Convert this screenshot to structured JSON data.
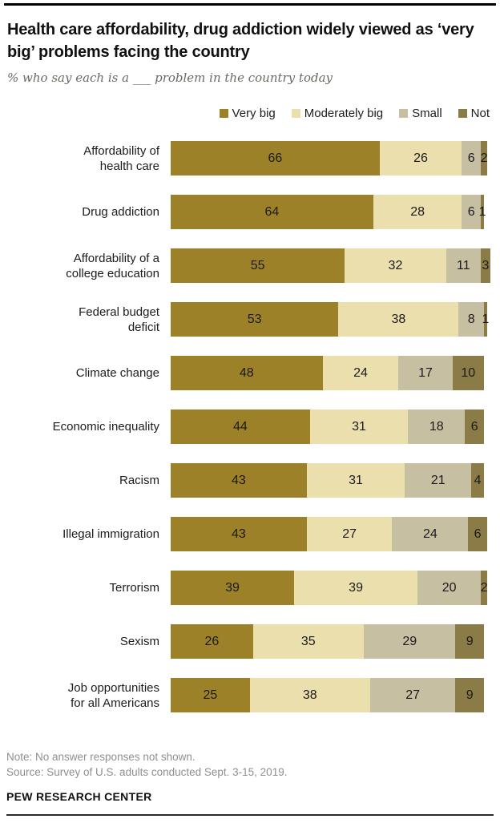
{
  "header": {
    "title": "Health care affordability, drug addiction widely viewed as ‘very big’ problems facing the country",
    "subtitle": "% who say each is a ___ problem in the country today"
  },
  "chart_data": {
    "type": "bar",
    "stacked": true,
    "orientation": "horizontal",
    "unit": "percent",
    "xlim": [
      0,
      100
    ],
    "grid": false,
    "legend_position": "top-right",
    "categories": [
      "Affordability of\nhealth care",
      "Drug addiction",
      "Affordability of a\ncollege education",
      "Federal budget\ndeficit",
      "Climate change",
      "Economic inequality",
      "Racism",
      "Illegal immigration",
      "Terrorism",
      "Sexism",
      "Job opportunities\nfor all Americans"
    ],
    "series": [
      {
        "name": "Very big",
        "color": "#9d8128",
        "values": [
          66,
          64,
          55,
          53,
          48,
          44,
          43,
          43,
          39,
          26,
          25
        ]
      },
      {
        "name": "Moderately big",
        "color": "#ecdfae",
        "values": [
          26,
          28,
          32,
          38,
          24,
          31,
          31,
          27,
          39,
          35,
          38
        ]
      },
      {
        "name": "Small",
        "color": "#c7bfa2",
        "values": [
          6,
          6,
          11,
          8,
          17,
          18,
          21,
          24,
          20,
          29,
          27
        ]
      },
      {
        "name": "Not",
        "color": "#8a7b47",
        "values": [
          2,
          1,
          3,
          1,
          10,
          6,
          4,
          6,
          2,
          9,
          9
        ]
      }
    ]
  },
  "footer": {
    "note": "Note: No answer responses not shown.",
    "source": "Source: Survey of U.S. adults conducted Sept. 3-15, 2019.",
    "brand": "PEW RESEARCH CENTER"
  }
}
